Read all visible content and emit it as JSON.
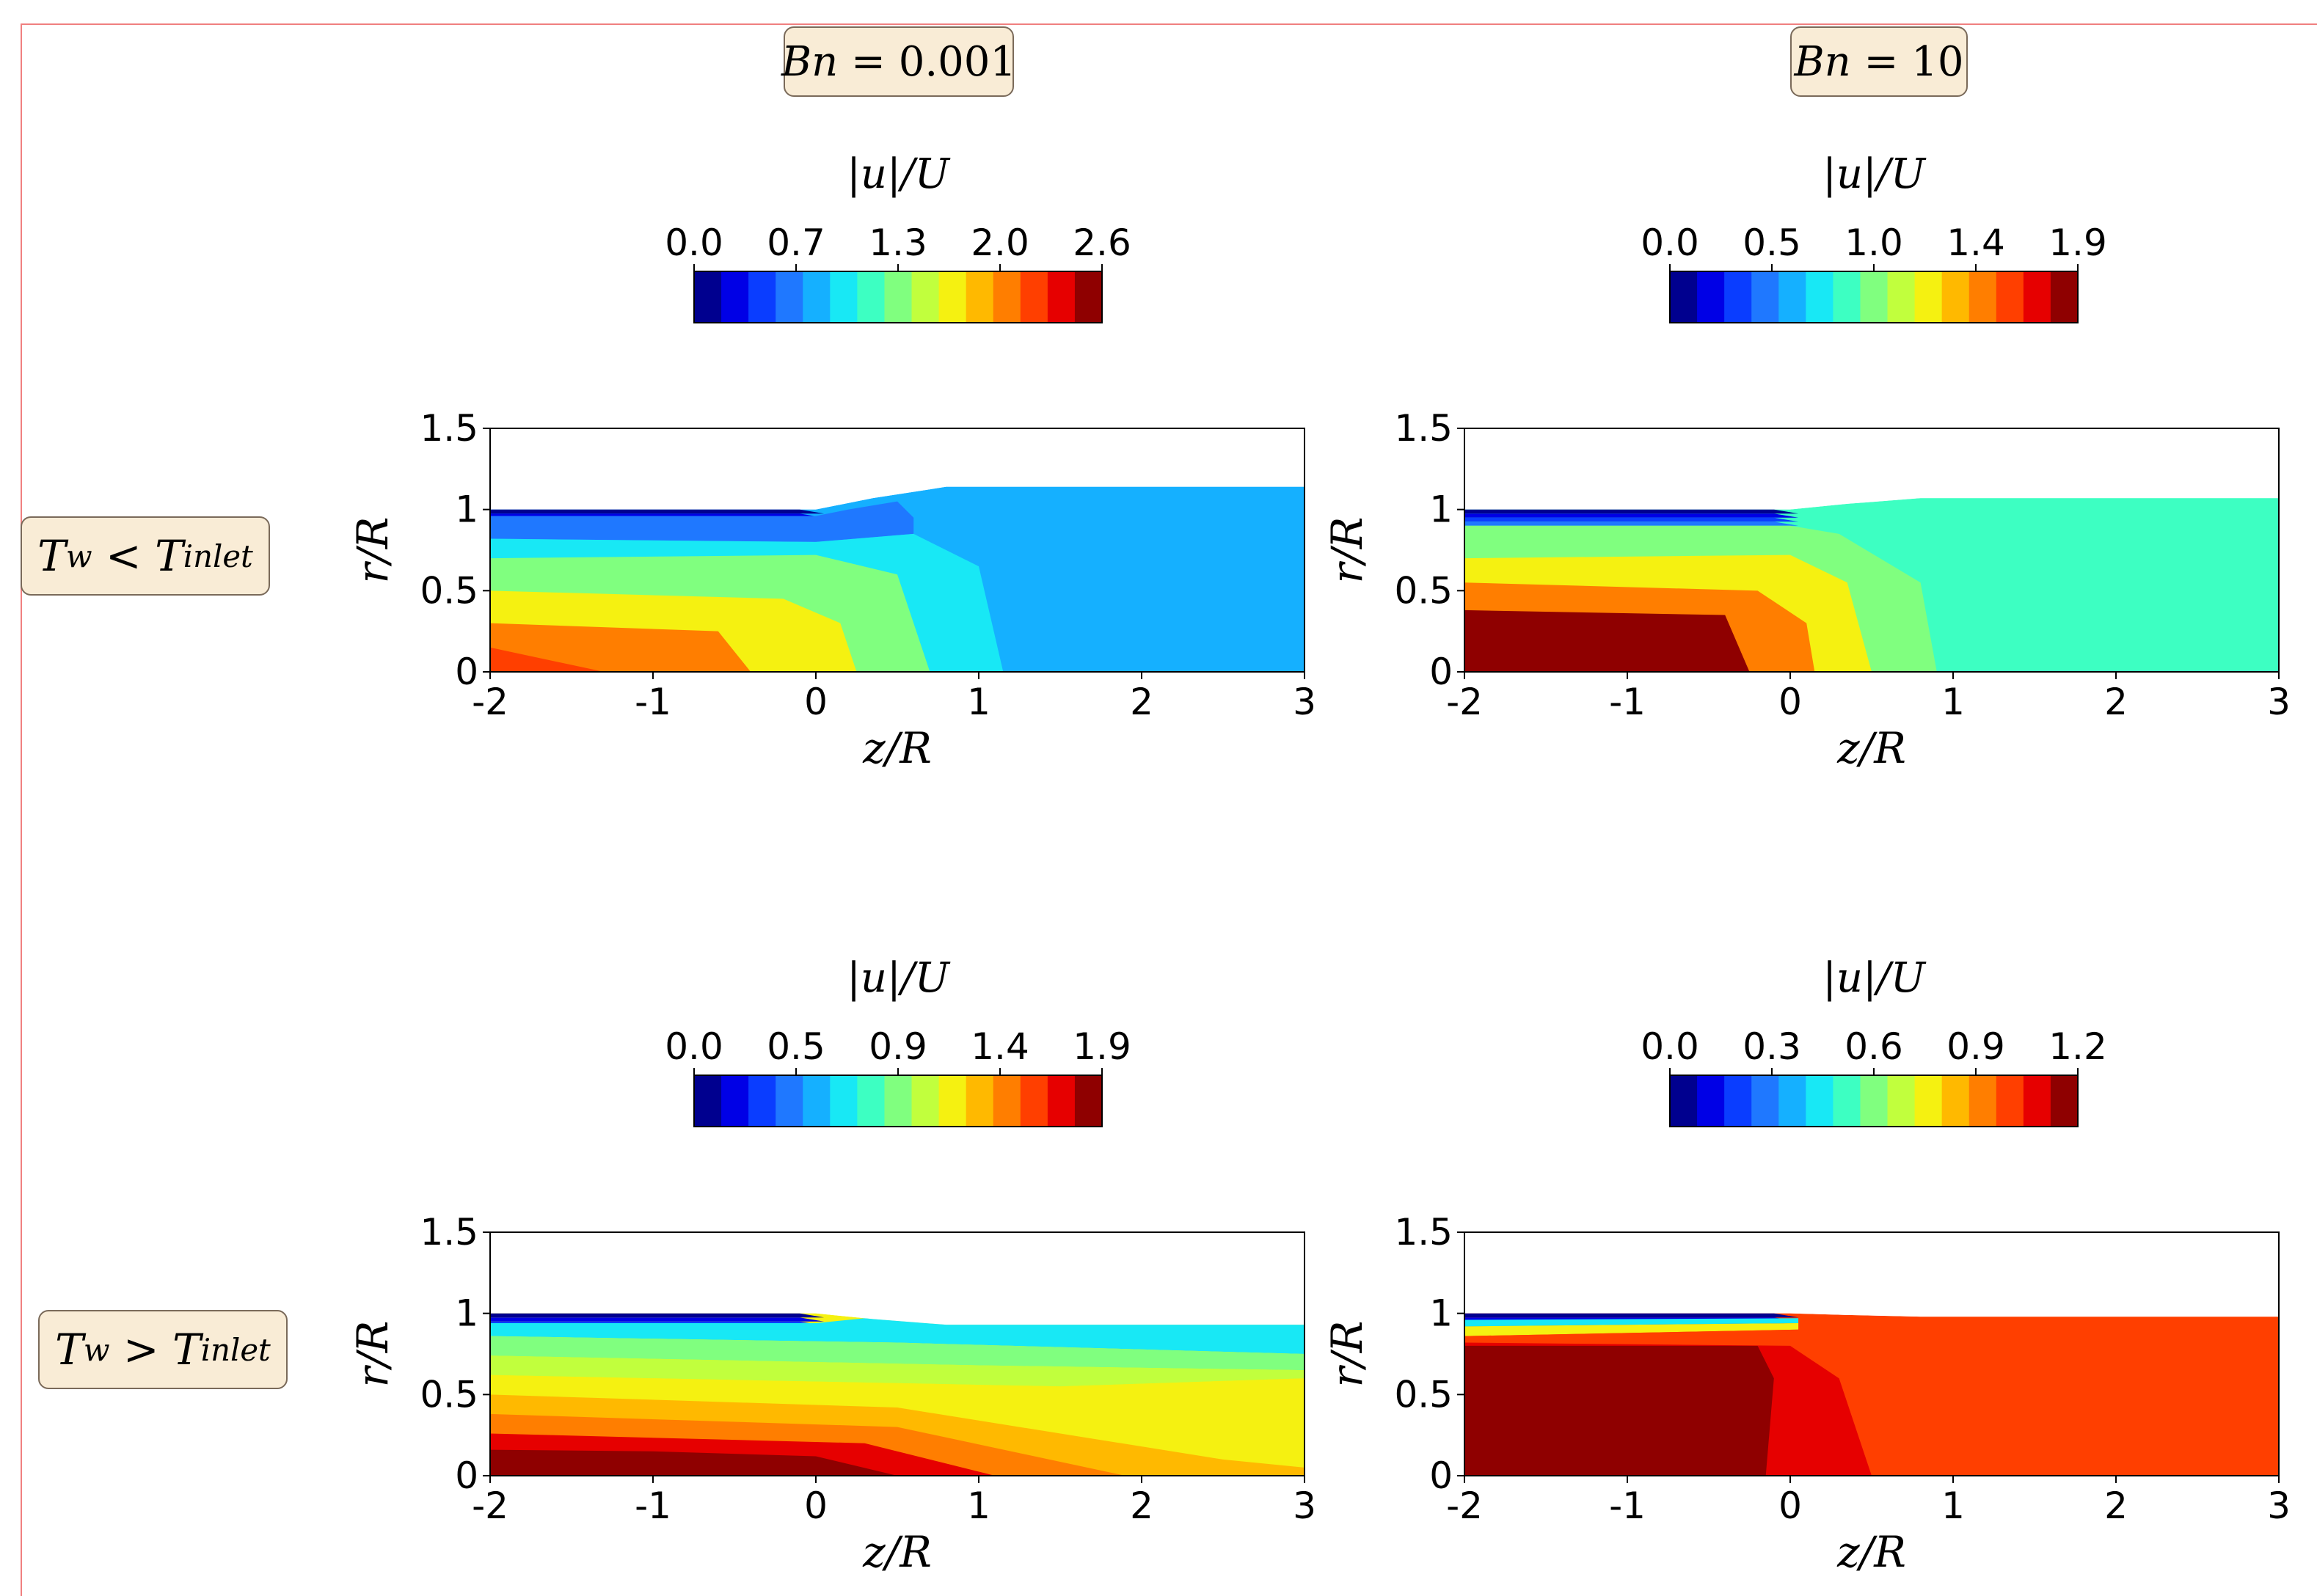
{
  "column_headers": [
    {
      "var": "Bn",
      "op": "=",
      "value": "0.001"
    },
    {
      "var": "Bn",
      "op": "=",
      "value": "10"
    }
  ],
  "row_headers": [
    {
      "lhs": "T",
      "lhs_sub": "w",
      "op": "<",
      "rhs": "T",
      "rhs_sub": "inlet"
    },
    {
      "lhs": "T",
      "lhs_sub": "w",
      "op": ">",
      "rhs": "T",
      "rhs_sub": "inlet"
    }
  ],
  "colors": {
    "jet": [
      "#00008f",
      "#0000e6",
      "#0a3dff",
      "#1f78ff",
      "#15b0ff",
      "#18e8f5",
      "#3dffc2",
      "#80ff7f",
      "#c1ff3d",
      "#f5f111",
      "#ffb900",
      "#ff7e00",
      "#ff3f00",
      "#e60000",
      "#8f0000"
    ]
  },
  "chart_data": [
    {
      "type": "heatmap",
      "panel": "row1-col1",
      "colorbar_label": "|u|/U",
      "colorbar_ticks": [
        "0.0",
        "0.7",
        "1.3",
        "2.0",
        "2.6"
      ],
      "levels": 15,
      "xlabel": "z/R",
      "ylabel": "r/R",
      "xlim": [
        -2,
        3
      ],
      "ylim": [
        0,
        1.5
      ],
      "xticks": [
        "-2",
        "-1",
        "0",
        "1",
        "2",
        "3"
      ],
      "yticks": [
        "0",
        "0.5",
        "1",
        "1.5"
      ],
      "free_surface_r_downstream": 1.14,
      "fields": [
        {
          "level": 3,
          "pts": [
            [
              -2,
              0.96
            ],
            [
              0,
              0.96
            ],
            [
              0.2,
              1.0
            ],
            [
              0.5,
              1.05
            ],
            [
              0.6,
              0.95
            ],
            [
              0.6,
              0.85
            ],
            [
              0,
              0.8
            ],
            [
              -2,
              0.82
            ]
          ]
        },
        {
          "level": 5,
          "pts": [
            [
              -2,
              0.82
            ],
            [
              0,
              0.8
            ],
            [
              0.6,
              0.85
            ],
            [
              1.0,
              0.65
            ],
            [
              1.15,
              0
            ],
            [
              -2,
              0
            ]
          ]
        },
        {
          "level": 7,
          "pts": [
            [
              -2,
              0.7
            ],
            [
              0,
              0.72
            ],
            [
              0.5,
              0.6
            ],
            [
              0.7,
              0
            ],
            [
              -2,
              0
            ]
          ]
        },
        {
          "level": 9,
          "pts": [
            [
              -2,
              0.5
            ],
            [
              -0.2,
              0.45
            ],
            [
              0.15,
              0.3
            ],
            [
              0.25,
              0
            ],
            [
              -2,
              0
            ]
          ]
        },
        {
          "level": 11,
          "pts": [
            [
              -2,
              0.3
            ],
            [
              -0.6,
              0.25
            ],
            [
              -0.4,
              0
            ],
            [
              -2,
              0
            ]
          ]
        },
        {
          "level": 12,
          "pts": [
            [
              -2,
              0.15
            ],
            [
              -1.3,
              0
            ],
            [
              -2,
              0
            ]
          ]
        }
      ]
    },
    {
      "type": "heatmap",
      "panel": "row1-col2",
      "colorbar_label": "|u|/U",
      "colorbar_ticks": [
        "0.0",
        "0.5",
        "1.0",
        "1.4",
        "1.9"
      ],
      "levels": 15,
      "xlabel": "z/R",
      "ylabel": "r/R",
      "xlim": [
        -2,
        3
      ],
      "ylim": [
        0,
        1.5
      ],
      "xticks": [
        "-2",
        "-1",
        "0",
        "1",
        "2",
        "3"
      ],
      "yticks": [
        "0",
        "0.5",
        "1",
        "1.5"
      ],
      "free_surface_r_downstream": 1.07,
      "fields": [
        {
          "level": 7,
          "pts": [
            [
              -2,
              0.9
            ],
            [
              0,
              0.9
            ],
            [
              0.3,
              0.85
            ],
            [
              0.8,
              0.55
            ],
            [
              0.9,
              0
            ],
            [
              -2,
              0
            ]
          ]
        },
        {
          "level": 9,
          "pts": [
            [
              -2,
              0.7
            ],
            [
              0,
              0.72
            ],
            [
              0.35,
              0.55
            ],
            [
              0.5,
              0
            ],
            [
              -2,
              0
            ]
          ]
        },
        {
          "level": 11,
          "pts": [
            [
              -2,
              0.55
            ],
            [
              -0.2,
              0.5
            ],
            [
              0.1,
              0.3
            ],
            [
              0.15,
              0
            ],
            [
              -2,
              0
            ]
          ]
        },
        {
          "level": 14,
          "pts": [
            [
              -2,
              0.38
            ],
            [
              -0.4,
              0.35
            ],
            [
              -0.25,
              0
            ],
            [
              -2,
              0
            ]
          ]
        }
      ]
    },
    {
      "type": "heatmap",
      "panel": "row2-col1",
      "colorbar_label": "|u|/U",
      "colorbar_ticks": [
        "0.0",
        "0.5",
        "0.9",
        "1.4",
        "1.9"
      ],
      "levels": 15,
      "xlabel": "z/R",
      "ylabel": "r/R",
      "xlim": [
        -2,
        3
      ],
      "ylim": [
        0,
        1.5
      ],
      "xticks": [
        "-2",
        "-1",
        "0",
        "1",
        "2",
        "3"
      ],
      "yticks": [
        "0",
        "0.5",
        "1",
        "1.5"
      ],
      "free_surface_r_downstream": 0.93,
      "fields": [
        {
          "level": 5,
          "pts": [
            [
              -2,
              0.94
            ],
            [
              0,
              0.94
            ],
            [
              0.3,
              0.97
            ],
            [
              1.0,
              0.95
            ],
            [
              3,
              0.93
            ],
            [
              3,
              0.75
            ],
            [
              0.5,
              0.82
            ],
            [
              -2,
              0.86
            ]
          ]
        },
        {
          "level": 7,
          "pts": [
            [
              -2,
              0.86
            ],
            [
              0.5,
              0.82
            ],
            [
              3,
              0.75
            ],
            [
              3,
              0.65
            ],
            [
              1,
              0.68
            ],
            [
              -2,
              0.74
            ]
          ]
        },
        {
          "level": 8,
          "pts": [
            [
              -2,
              0.74
            ],
            [
              1,
              0.68
            ],
            [
              3,
              0.65
            ],
            [
              3,
              0.6
            ],
            [
              1.5,
              0.55
            ],
            [
              -2,
              0.62
            ]
          ]
        },
        {
          "level": 9,
          "pts": [
            [
              -2,
              0.62
            ],
            [
              1.5,
              0.55
            ],
            [
              3,
              0.6
            ],
            [
              3,
              0
            ],
            [
              -2,
              0
            ]
          ]
        },
        {
          "level": 10,
          "pts": [
            [
              -2,
              0.5
            ],
            [
              0.5,
              0.42
            ],
            [
              2.5,
              0.1
            ],
            [
              3,
              0.05
            ],
            [
              3,
              0
            ],
            [
              -2,
              0
            ]
          ]
        },
        {
          "level": 11,
          "pts": [
            [
              -2,
              0.38
            ],
            [
              0.5,
              0.3
            ],
            [
              1.9,
              0
            ],
            [
              -2,
              0
            ]
          ]
        },
        {
          "level": 13,
          "pts": [
            [
              -2,
              0.26
            ],
            [
              0.3,
              0.2
            ],
            [
              1.1,
              0
            ],
            [
              -2,
              0
            ]
          ]
        },
        {
          "level": 14,
          "pts": [
            [
              -2,
              0.16
            ],
            [
              -1,
              0.15
            ],
            [
              0,
              0.12
            ],
            [
              0.5,
              0
            ],
            [
              -2,
              0
            ]
          ]
        }
      ]
    },
    {
      "type": "heatmap",
      "panel": "row2-col2",
      "colorbar_label": "|u|/U",
      "colorbar_ticks": [
        "0.0",
        "0.3",
        "0.6",
        "0.9",
        "1.2"
      ],
      "levels": 15,
      "xlabel": "z/R",
      "ylabel": "r/R",
      "xlim": [
        -2,
        3
      ],
      "ylim": [
        0,
        1.5
      ],
      "xticks": [
        "-2",
        "-1",
        "0",
        "1",
        "2",
        "3"
      ],
      "yticks": [
        "0",
        "0.5",
        "1",
        "1.5"
      ],
      "free_surface_r_downstream": 0.98,
      "fields": [
        {
          "level": 5,
          "pts": [
            [
              -2,
              0.96
            ],
            [
              0.05,
              0.97
            ],
            [
              0.05,
              0.94
            ],
            [
              -2,
              0.92
            ]
          ]
        },
        {
          "level": 9,
          "pts": [
            [
              -2,
              0.92
            ],
            [
              0.05,
              0.94
            ],
            [
              0.05,
              0.9
            ],
            [
              -2,
              0.86
            ]
          ]
        },
        {
          "level": 12,
          "pts": [
            [
              -2,
              0.86
            ],
            [
              0.05,
              0.9
            ],
            [
              0.1,
              0.97
            ],
            [
              3,
              0.97
            ],
            [
              3,
              0
            ],
            [
              -2,
              0
            ]
          ]
        },
        {
          "level": 13,
          "pts": [
            [
              -2,
              0.82
            ],
            [
              0,
              0.8
            ],
            [
              0.3,
              0.6
            ],
            [
              0.5,
              0
            ],
            [
              -2,
              0
            ]
          ]
        },
        {
          "level": 14,
          "pts": [
            [
              -2,
              0.8
            ],
            [
              -0.2,
              0.8
            ],
            [
              -0.1,
              0.6
            ],
            [
              -0.15,
              0
            ],
            [
              -2,
              0
            ]
          ]
        }
      ]
    }
  ]
}
